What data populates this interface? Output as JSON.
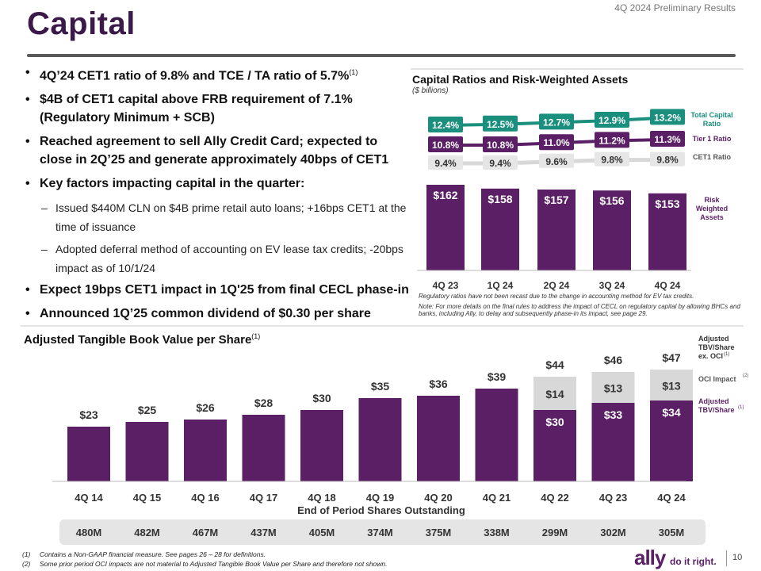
{
  "header": {
    "title": "Capital",
    "report": "4Q 2024 Preliminary Results"
  },
  "bullets": {
    "b1": "4Q’24 CET1 ratio of 9.8% and TCE / TA ratio of 5.7%",
    "b1_sup": "(1)",
    "b2": "$4B of CET1 capital above FRB requirement of 7.1% (Regulatory Minimum + SCB)",
    "b3": "Reached agreement to sell Ally Credit Card; expected to close in 2Q’25 and generate approximately 40bps of CET1",
    "b4": "Key factors impacting capital in the quarter:",
    "sub1": "Issued $440M CLN on $4B prime retail auto loans; +16bps CET1 at the time of issuance",
    "sub2": "Adopted deferral method of accounting on EV lease tax credits; -20bps impact as of 10/1/24",
    "b5": "Expect 19bps CET1 impact in 1Q'25 from final CECL phase-in",
    "b6": "Announced 1Q’25 common dividend of $0.30 per share"
  },
  "chart_data": [
    {
      "type": "bar",
      "title": "Capital Ratios and Risk-Weighted Assets",
      "units": "($ billions)",
      "categories": [
        "4Q 23",
        "1Q 24",
        "2Q 24",
        "3Q 24",
        "4Q 24"
      ],
      "series": [
        {
          "name": "Risk Weighted Assets",
          "values": [
            162,
            158,
            157,
            156,
            153
          ],
          "labels": [
            "$162",
            "$158",
            "$157",
            "$156",
            "$153"
          ],
          "color": "#5b1f66"
        },
        {
          "name": "Total Capital Ratio",
          "type": "line",
          "values": [
            12.4,
            12.5,
            12.7,
            12.9,
            13.2
          ],
          "labels": [
            "12.4%",
            "12.5%",
            "12.7%",
            "12.9%",
            "13.2%"
          ],
          "color": "#1a8f7e"
        },
        {
          "name": "Tier 1 Ratio",
          "type": "line",
          "values": [
            10.8,
            10.8,
            11.0,
            11.2,
            11.3
          ],
          "labels": [
            "10.8%",
            "10.8%",
            "11.0%",
            "11.2%",
            "11.3%"
          ],
          "color": "#5b1f66"
        },
        {
          "name": "CET1 Ratio",
          "type": "line",
          "values": [
            9.4,
            9.4,
            9.6,
            9.8,
            9.8
          ],
          "labels": [
            "9.4%",
            "9.4%",
            "9.6%",
            "9.8%",
            "9.8%"
          ],
          "color": "#d8d8d8"
        }
      ],
      "legend": [
        "Total Capital Ratio",
        "Tier 1 Ratio",
        "CET1 Ratio",
        "Risk Weighted Assets"
      ],
      "legend_placement": "right",
      "note1": "Regulatory ratios have not been recast due to the change in accounting method for EV tax credits.",
      "note2": "Note: For more details on the final rules to address the impact of CECL on regulatory capital by allowing BHCs and banks, including Ally, to delay and subsequently phase-in its impact, see page 29."
    },
    {
      "type": "bar",
      "title": "Adjusted Tangible Book Value per Share",
      "title_sup": "(1)",
      "categories": [
        "4Q 14",
        "4Q 15",
        "4Q 16",
        "4Q 17",
        "4Q 18",
        "4Q 19",
        "4Q 20",
        "4Q 21",
        "4Q 22",
        "4Q 23",
        "4Q 24"
      ],
      "series": [
        {
          "name": "Adjusted TBV/Share",
          "values": [
            23,
            25,
            26,
            28,
            30,
            35,
            36,
            39,
            30,
            33,
            34
          ],
          "color": "#5b1f66"
        },
        {
          "name": "OCI Impact",
          "values": [
            0,
            0,
            0,
            0,
            0,
            0,
            0,
            0,
            14,
            13,
            13
          ],
          "color": "#d8d8d8"
        }
      ],
      "bar_labels": [
        "$23",
        "$25",
        "$26",
        "$28",
        "$30",
        "$35",
        "$36",
        "$39",
        "$30",
        "$33",
        "$34"
      ],
      "oci_labels": [
        "",
        "",
        "",
        "",
        "",
        "",
        "",
        "",
        "$14",
        "$13",
        "$13"
      ],
      "total_labels": [
        "",
        "",
        "",
        "",
        "",
        "",
        "",
        "",
        "$44",
        "$46",
        "$47"
      ],
      "legend": [
        "Adjusted TBV/Share ex. OCI",
        "OCI Impact",
        "Adjusted TBV/Share"
      ],
      "legend_sups": [
        "(1)",
        "(2)",
        "(1)"
      ],
      "legend_placement": "right",
      "shares_title": "End of Period Shares Outstanding",
      "shares": [
        "480M",
        "482M",
        "467M",
        "437M",
        "405M",
        "374M",
        "375M",
        "338M",
        "299M",
        "302M",
        "305M"
      ]
    }
  ],
  "footnotes": {
    "n1_mark": "(1)",
    "n1": "Contains a Non-GAAP financial measure. See pages 26 – 28 for definitions.",
    "n2_mark": "(2)",
    "n2": "Some prior period OCI impacts are not material to Adjusted Tangible Book Value per Share and therefore not shown."
  },
  "footer": {
    "brand": "ally",
    "tagline": "do it right.",
    "page": "10"
  },
  "colors": {
    "purple": "#5b1f66",
    "teal": "#1a8f7e",
    "gray": "#d8d8d8",
    "title": "#3b1a4a"
  }
}
